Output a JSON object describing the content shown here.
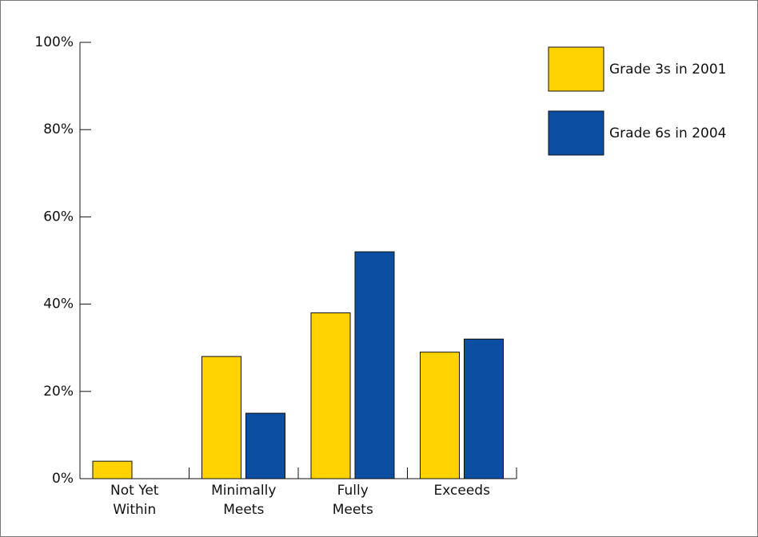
{
  "chart_data": {
    "type": "bar",
    "categories": [
      "Not Yet\nWithin",
      "Minimally\nMeets",
      "Fully\nMeets",
      "Exceeds"
    ],
    "series": [
      {
        "name": "Grade 3s in 2001",
        "color": "#ffd200",
        "values": [
          4,
          28,
          38,
          29
        ]
      },
      {
        "name": "Grade 6s in 2004",
        "color": "#0b4ea2",
        "values": [
          0,
          15,
          52,
          32
        ]
      }
    ],
    "ylim": [
      0,
      100
    ],
    "yticks": [
      {
        "value": 0,
        "label": "0%"
      },
      {
        "value": 20,
        "label": "20%"
      },
      {
        "value": 40,
        "label": "40%"
      },
      {
        "value": 60,
        "label": "60%"
      },
      {
        "value": 80,
        "label": "80%"
      },
      {
        "value": 100,
        "label": "100%"
      }
    ],
    "legend": "top-right"
  }
}
